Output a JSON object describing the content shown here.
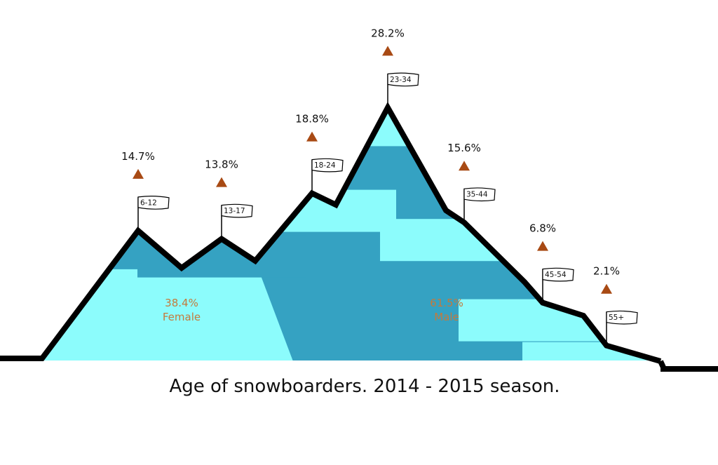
{
  "chart_data": {
    "type": "area",
    "title": "Age of snowboarders. 2014 - 2015 season.",
    "categories": [
      "6-12",
      "13-17",
      "18-24",
      "23-34",
      "35-44",
      "45-54",
      "55+"
    ],
    "values": [
      14.7,
      13.8,
      18.8,
      28.2,
      15.6,
      6.8,
      2.1
    ],
    "value_labels": [
      "14.7%",
      "13.8%",
      "18.8%",
      "28.2%",
      "15.6%",
      "6.8%",
      "2.1%"
    ],
    "gender_split": [
      {
        "name": "Female",
        "value": 38.4,
        "label": "38.4%"
      },
      {
        "name": "Male",
        "value": 61.5,
        "label": "61.5%"
      }
    ]
  },
  "colors": {
    "female_fill": "#8cfcfc",
    "male_fill": "#35a2c2",
    "ridge": "#000000",
    "marker": "#a84a14",
    "split_text": "#c47a3c"
  }
}
